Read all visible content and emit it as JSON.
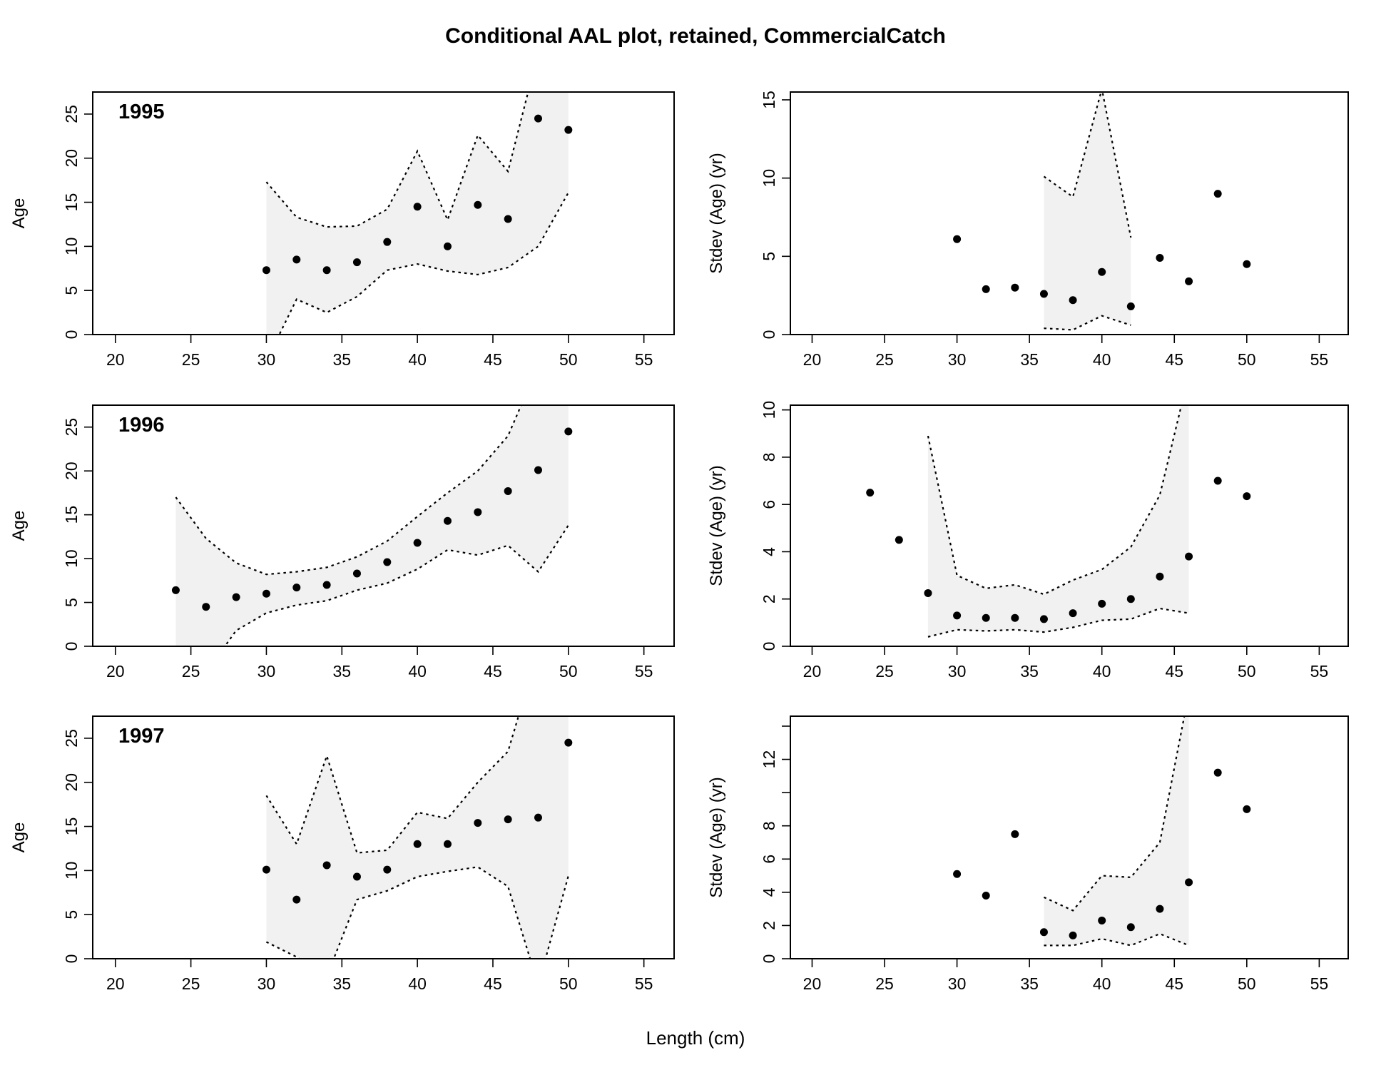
{
  "title": "Conditional AAL plot, retained, CommercialCatch",
  "xlabel": "Length (cm)",
  "chart_data": [
    {
      "type": "scatter",
      "panel": "mean-age",
      "year_label": "1995",
      "ylabel": "Age",
      "xlim": [
        18.5,
        57
      ],
      "ylim": [
        0,
        27.5
      ],
      "xticks": [
        20,
        25,
        30,
        35,
        40,
        45,
        50,
        55
      ],
      "yticks": [
        0,
        5,
        10,
        15,
        20,
        25
      ],
      "x": [
        30,
        32,
        34,
        36,
        38,
        40,
        42,
        44,
        46,
        48,
        50
      ],
      "observed": [
        7.3,
        8.5,
        7.3,
        8.2,
        10.5,
        14.5,
        10.0,
        14.7,
        13.1,
        24.5,
        23.2
      ],
      "ci_x": [
        30,
        32,
        34,
        36,
        38,
        40,
        42,
        44,
        46,
        48,
        50
      ],
      "ci_upper": [
        17.3,
        13.3,
        12.2,
        12.3,
        14.2,
        20.8,
        13.0,
        22.6,
        18.5,
        32.0,
        35.0
      ],
      "ci_lower": [
        -3.0,
        4.0,
        2.5,
        4.3,
        7.3,
        8.0,
        7.2,
        6.8,
        7.6,
        10.0,
        16.1
      ],
      "grid": false,
      "legend": "none"
    },
    {
      "type": "scatter",
      "panel": "stdev-age",
      "year_label": "",
      "ylabel": "Stdev (Age) (yr)",
      "xlim": [
        18.5,
        57
      ],
      "ylim": [
        0,
        15.5
      ],
      "xticks": [
        20,
        25,
        30,
        35,
        40,
        45,
        50,
        55
      ],
      "yticks": [
        0,
        5,
        10,
        15
      ],
      "x": [
        30,
        32,
        34,
        36,
        38,
        40,
        42,
        44,
        46,
        48,
        50
      ],
      "observed": [
        6.1,
        2.9,
        3.0,
        2.6,
        2.2,
        4.0,
        1.8,
        4.9,
        3.4,
        9.0,
        4.5
      ],
      "ci_x": [
        36,
        38,
        40,
        42
      ],
      "ci_upper": [
        10.1,
        8.8,
        15.7,
        6.2
      ],
      "ci_lower": [
        0.4,
        0.3,
        1.2,
        0.6
      ],
      "grid": false,
      "legend": "none"
    },
    {
      "type": "scatter",
      "panel": "mean-age",
      "year_label": "1996",
      "ylabel": "Age",
      "xlim": [
        18.5,
        57
      ],
      "ylim": [
        0,
        27.5
      ],
      "xticks": [
        20,
        25,
        30,
        35,
        40,
        45,
        50,
        55
      ],
      "yticks": [
        0,
        5,
        10,
        15,
        20,
        25
      ],
      "x": [
        24,
        26,
        28,
        30,
        32,
        34,
        36,
        38,
        40,
        42,
        44,
        46,
        48,
        50
      ],
      "observed": [
        6.4,
        4.5,
        5.6,
        6.0,
        6.7,
        7.0,
        8.3,
        9.6,
        11.8,
        14.3,
        15.3,
        17.7,
        20.1,
        24.5
      ],
      "ci_x": [
        24,
        26,
        28,
        30,
        32,
        34,
        36,
        38,
        40,
        42,
        44,
        46,
        48,
        50
      ],
      "ci_upper": [
        17.0,
        12.3,
        9.5,
        8.2,
        8.5,
        9.0,
        10.2,
        12.0,
        14.8,
        17.5,
        20.0,
        24.0,
        32.0,
        40.0
      ],
      "ci_lower": [
        -4.0,
        -3.0,
        1.8,
        3.8,
        4.7,
        5.2,
        6.4,
        7.2,
        8.8,
        11.0,
        10.4,
        11.5,
        8.5,
        13.8
      ],
      "grid": false,
      "legend": "none"
    },
    {
      "type": "scatter",
      "panel": "stdev-age",
      "year_label": "",
      "ylabel": "Stdev (Age) (yr)",
      "xlim": [
        18.5,
        57
      ],
      "ylim": [
        0,
        10.2
      ],
      "xticks": [
        20,
        25,
        30,
        35,
        40,
        45,
        50,
        55
      ],
      "yticks": [
        0,
        2,
        4,
        6,
        8,
        10
      ],
      "x": [
        24,
        26,
        28,
        30,
        32,
        34,
        36,
        38,
        40,
        42,
        44,
        46,
        48,
        50
      ],
      "observed": [
        6.5,
        4.5,
        2.25,
        1.3,
        1.2,
        1.2,
        1.15,
        1.4,
        1.8,
        2.0,
        2.95,
        3.8,
        7.0,
        6.35
      ],
      "ci_x": [
        28,
        30,
        32,
        34,
        36,
        38,
        40,
        42,
        44,
        46
      ],
      "ci_upper": [
        8.9,
        3.0,
        2.45,
        2.6,
        2.2,
        2.8,
        3.25,
        4.2,
        6.4,
        11.5
      ],
      "ci_lower": [
        0.4,
        0.7,
        0.65,
        0.7,
        0.6,
        0.8,
        1.1,
        1.15,
        1.6,
        1.4
      ],
      "grid": false,
      "legend": "none"
    },
    {
      "type": "scatter",
      "panel": "mean-age",
      "year_label": "1997",
      "ylabel": "Age",
      "xlim": [
        18.5,
        57
      ],
      "ylim": [
        0,
        27.5
      ],
      "xticks": [
        20,
        25,
        30,
        35,
        40,
        45,
        50,
        55
      ],
      "yticks": [
        0,
        5,
        10,
        15,
        20,
        25
      ],
      "x": [
        30,
        32,
        34,
        36,
        38,
        40,
        42,
        44,
        46,
        48,
        50
      ],
      "observed": [
        10.1,
        6.7,
        10.6,
        9.3,
        10.1,
        13.0,
        13.0,
        15.4,
        15.8,
        16.0,
        24.5
      ],
      "ci_x": [
        30,
        32,
        34,
        36,
        38,
        40,
        42,
        44,
        46,
        48,
        50
      ],
      "ci_upper": [
        18.5,
        13.0,
        23.0,
        12.0,
        12.3,
        16.6,
        15.9,
        20.0,
        23.5,
        35.0,
        40.0
      ],
      "ci_lower": [
        1.9,
        0.2,
        -2.0,
        6.7,
        7.7,
        9.3,
        9.9,
        10.4,
        8.2,
        -3.0,
        9.4
      ],
      "grid": false,
      "legend": "none"
    },
    {
      "type": "scatter",
      "panel": "stdev-age",
      "year_label": "",
      "ylabel": "Stdev (Age) (yr)",
      "xlim": [
        18.5,
        57
      ],
      "ylim": [
        0,
        14.6
      ],
      "xticks": [
        20,
        25,
        30,
        35,
        40,
        45,
        50,
        55
      ],
      "yticks": [
        0,
        2,
        4,
        6,
        8,
        12
      ],
      "minor_yticks": [
        10,
        14
      ],
      "x": [
        30,
        32,
        34,
        36,
        38,
        40,
        42,
        44,
        46,
        48,
        50
      ],
      "observed": [
        5.1,
        3.8,
        7.5,
        1.6,
        1.4,
        2.3,
        1.9,
        3.0,
        4.6,
        11.2,
        9.0
      ],
      "ci_x": [
        36,
        38,
        40,
        42,
        44,
        46
      ],
      "ci_upper": [
        3.7,
        2.9,
        5.0,
        4.9,
        7.0,
        16.0
      ],
      "ci_lower": [
        0.8,
        0.8,
        1.2,
        0.8,
        1.5,
        0.8
      ],
      "grid": false,
      "legend": "none"
    }
  ]
}
